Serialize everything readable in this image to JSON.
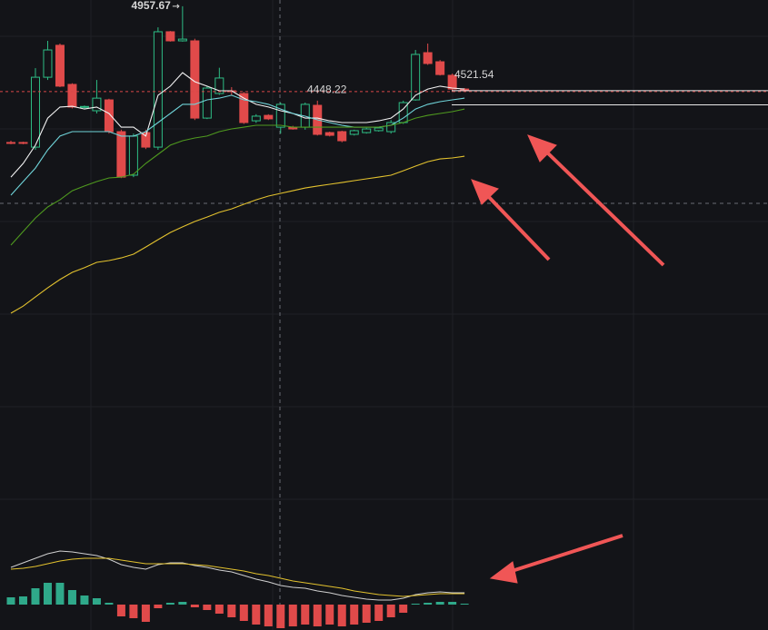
{
  "chart_data": [
    {
      "type": "candlestick",
      "ylim": [
        2364,
        4990
      ],
      "up_color": "#2ebd85",
      "down_color": "#e04a4a",
      "open": [
        4254,
        4254,
        4230,
        4591,
        4756,
        4554,
        4437,
        4418,
        4474,
        4310,
        4085,
        4305,
        4230,
        4826,
        4779,
        4779,
        4380,
        4507,
        4521,
        4507,
        4366,
        4394,
        4333,
        4333,
        4333,
        4446,
        4305,
        4310,
        4296,
        4305,
        4315,
        4310,
        4357,
        4474,
        4718,
        4671,
        4601,
        4530
      ],
      "high": [
        4263,
        4258,
        4638,
        4779,
        4765,
        4560,
        4445,
        4577,
        4480,
        4320,
        4300,
        4320,
        4849,
        4830,
        4957.67,
        4790,
        4545,
        4640,
        4540,
        4515,
        4400,
        4400,
        4460,
        4340,
        4460,
        4470,
        4310,
        4315,
        4320,
        4330,
        4335,
        4370,
        4470,
        4732,
        4765,
        4680,
        4610,
        4535
      ],
      "low": [
        4245,
        4245,
        4216,
        4577,
        4540,
        4430,
        4430,
        4404,
        4300,
        4070,
        4075,
        4220,
        4216,
        4775,
        4775,
        4370,
        4375,
        4500,
        4500,
        4350,
        4355,
        4370,
        4300,
        4320,
        4320,
        4290,
        4285,
        4255,
        4290,
        4300,
        4310,
        4300,
        4350,
        4470,
        4655,
        4600,
        4515,
        4518
      ],
      "close": [
        4250,
        4252,
        4591,
        4732,
        4545,
        4437,
        4440,
        4483,
        4310,
        4075,
        4287,
        4230,
        4826,
        4779,
        4788,
        4380,
        4535,
        4587,
        4518,
        4357,
        4390,
        4376,
        4451,
        4324,
        4451,
        4296,
        4291,
        4263,
        4315,
        4324,
        4329,
        4357,
        4460,
        4709,
        4662,
        4605,
        4530,
        4521.54
      ],
      "series": [
        {
          "color": "#f2f2f2",
          "values": [
            4075,
            4146,
            4240,
            4380,
            4437,
            4441,
            4427,
            4437,
            4404,
            4333,
            4333,
            4287,
            4498,
            4545,
            4615,
            4568,
            4545,
            4521,
            4521,
            4483,
            4451,
            4437,
            4418,
            4404,
            4380,
            4380,
            4366,
            4357,
            4357,
            4357,
            4366,
            4380,
            4427,
            4498,
            4530,
            4545,
            4535,
            4530
          ]
        },
        {
          "color": "#6fd3d8",
          "values": [
            3982,
            4052,
            4122,
            4216,
            4287,
            4310,
            4310,
            4310,
            4310,
            4287,
            4287,
            4310,
            4357,
            4404,
            4451,
            4451,
            4474,
            4483,
            4498,
            4474,
            4465,
            4451,
            4427,
            4404,
            4390,
            4371,
            4357,
            4343,
            4333,
            4333,
            4333,
            4343,
            4380,
            4427,
            4451,
            4465,
            4474,
            4483
          ]
        },
        {
          "color": "#4f9a1f",
          "values": [
            3724,
            3794,
            3864,
            3921,
            3958,
            4005,
            4029,
            4052,
            4071,
            4075,
            4090,
            4146,
            4193,
            4240,
            4263,
            4277,
            4287,
            4310,
            4324,
            4333,
            4343,
            4343,
            4343,
            4333,
            4333,
            4333,
            4333,
            4333,
            4333,
            4333,
            4333,
            4343,
            4357,
            4380,
            4394,
            4404,
            4413,
            4427
          ]
        },
        {
          "color": "#e3c22e",
          "values": [
            3372,
            3409,
            3456,
            3503,
            3546,
            3583,
            3607,
            3635,
            3644,
            3658,
            3677,
            3714,
            3752,
            3789,
            3818,
            3846,
            3869,
            3893,
            3911,
            3935,
            3958,
            3977,
            3991,
            4005,
            4019,
            4029,
            4038,
            4047,
            4057,
            4066,
            4075,
            4085,
            4108,
            4132,
            4155,
            4169,
            4174,
            4183
          ]
        }
      ],
      "annotations": [
        4957.67,
        4448.22,
        4521.54
      ]
    },
    {
      "type": "macd",
      "ylim": [
        -28,
        76
      ],
      "up_color": "#2fa98a",
      "down_color": "#e04a4a",
      "values": [
        8,
        9,
        18,
        24,
        24,
        16,
        10,
        7,
        2,
        -13,
        -15,
        -19,
        -4,
        2,
        3,
        -3,
        -6,
        -10,
        -14,
        -18,
        -22,
        -24,
        -26,
        -24,
        -22,
        -24,
        -22,
        -24,
        -22,
        -20,
        -18,
        -14,
        -9,
        1,
        2,
        3,
        3,
        1
      ],
      "series": [
        {
          "color": "#d0d0d0",
          "values": [
            41,
            46,
            51,
            56,
            59,
            58,
            56,
            54,
            50,
            44,
            41,
            39,
            44,
            46,
            46,
            43,
            41,
            38,
            36,
            32,
            28,
            25,
            21,
            19,
            18,
            15,
            13,
            10,
            8,
            6,
            5,
            5,
            7,
            11,
            13,
            14,
            13,
            13
          ]
        },
        {
          "color": "#e3c22e",
          "values": [
            39,
            40,
            42,
            45,
            48,
            50,
            51,
            51,
            51,
            49,
            47,
            45,
            45,
            45,
            45,
            44,
            43,
            41,
            39,
            37,
            34,
            32,
            29,
            26,
            24,
            22,
            20,
            18,
            15,
            13,
            11,
            10,
            9,
            10,
            11,
            12,
            12,
            12
          ]
        }
      ]
    }
  ]
}
